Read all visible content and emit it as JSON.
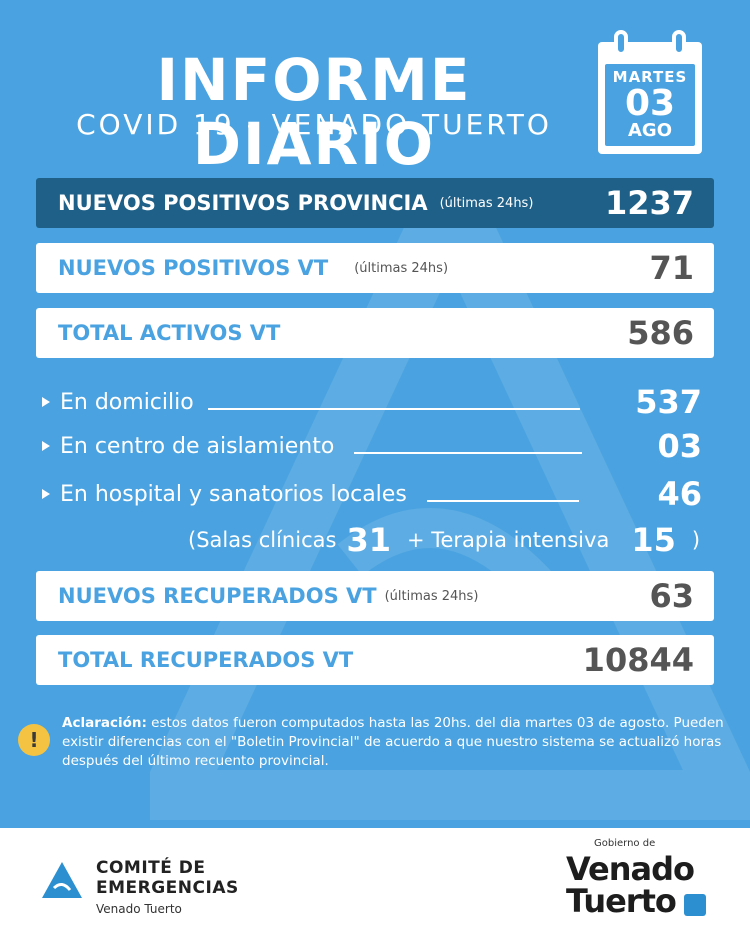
{
  "header": {
    "title": "INFORME DIARIO",
    "subtitle": "COVID 19 - VENADO TUERTO"
  },
  "calendar": {
    "day_name": "MARTES",
    "day_number": "03",
    "month": "AGO"
  },
  "bars": {
    "provincia": {
      "label": "NUEVOS POSITIVOS PROVINCIA",
      "note": "(últimas 24hs)",
      "value": "1237"
    },
    "positivos_vt": {
      "label": "NUEVOS POSITIVOS VT",
      "note": "(últimas 24hs)",
      "value": "71"
    },
    "activos_vt": {
      "label": "TOTAL ACTIVOS VT",
      "value": "586"
    },
    "recuperados_vt": {
      "label": "NUEVOS RECUPERADOS VT",
      "note": "(últimas 24hs)",
      "value": "63"
    },
    "total_recuperados": {
      "label": "TOTAL RECUPERADOS VT",
      "value": "10844"
    }
  },
  "breakdown": {
    "domicilio": {
      "label": "En domicilio",
      "value": "537"
    },
    "aislamiento": {
      "label": "En centro de aislamiento",
      "value": "03"
    },
    "hospital": {
      "label": "En hospital y sanatorios locales",
      "value": "46"
    }
  },
  "hospital_detail": {
    "open": "(Salas clínicas",
    "salas_value": "31",
    "plus": "+ Terapia intensiva",
    "terapia_value": "15",
    "close": ")"
  },
  "disclaimer": {
    "lead": "Aclaración:",
    "text": " estos datos fueron computados hasta las 20hs. del dia martes 03 de agosto. Pueden existir diferencias con el \"Boletin Provincial\" de acuerdo a que nuestro sistema se actualizó horas después del último recuento provincial.",
    "icon_glyph": "!"
  },
  "footer": {
    "comite_line1": "COMITÉ DE",
    "comite_line2": "EMERGENCIAS",
    "comite_line3": "Venado Tuerto",
    "gobierno": "Gobierno de",
    "vt_line1": "Venado",
    "vt_line2": "Tuerto"
  },
  "colors": {
    "background": "#4aa3e0",
    "dark_bar": "#1f6088",
    "warning": "#f5c342"
  }
}
